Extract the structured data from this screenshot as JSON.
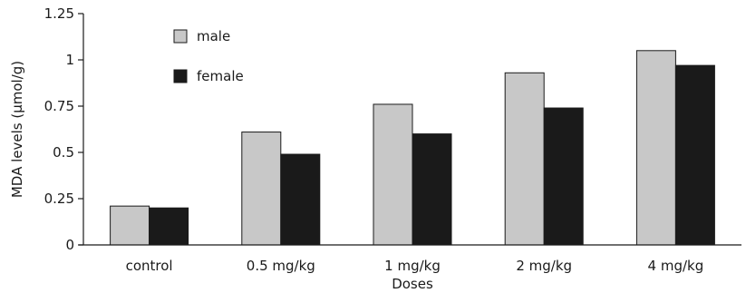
{
  "chart_data": {
    "type": "bar",
    "title": "",
    "xlabel": "Doses",
    "ylabel": "MDA levels  (μmol/g)",
    "categories": [
      "control",
      "0.5 mg/kg",
      "1 mg/kg",
      "2 mg/kg",
      "4 mg/kg"
    ],
    "series": [
      {
        "name": "male",
        "color": "#c8c8c8",
        "values": [
          0.21,
          0.61,
          0.76,
          0.93,
          1.05
        ]
      },
      {
        "name": "female",
        "color": "#1a1a1a",
        "values": [
          0.2,
          0.49,
          0.6,
          0.74,
          0.97
        ]
      }
    ],
    "ylim": [
      0,
      1.25
    ],
    "yticks": [
      0,
      0.25,
      0.5,
      0.75,
      1,
      1.25
    ],
    "ytick_labels": [
      "0",
      "0.25",
      "0.5",
      "0.75",
      "1",
      "1.25"
    ],
    "grid": false,
    "legend_position": "top-left"
  }
}
